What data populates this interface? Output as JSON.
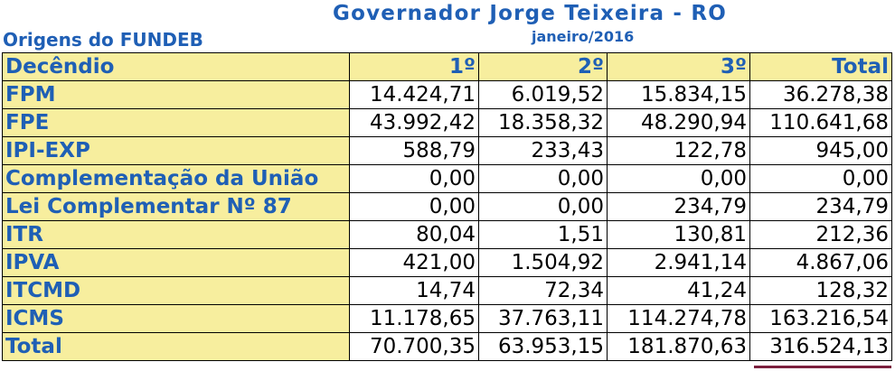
{
  "header": {
    "title": "Governador Jorge Teixeira - RO",
    "subtitle": "janeiro/2016",
    "section": "Origens do FUNDEB"
  },
  "table": {
    "columns": [
      "Decêndio",
      "1º",
      "2º",
      "3º",
      "Total"
    ],
    "rows": [
      {
        "label": "FPM",
        "values": [
          "14.424,71",
          "6.019,52",
          "15.834,15",
          "36.278,38"
        ]
      },
      {
        "label": "FPE",
        "values": [
          "43.992,42",
          "18.358,32",
          "48.290,94",
          "110.641,68"
        ]
      },
      {
        "label": "IPI-EXP",
        "values": [
          "588,79",
          "233,43",
          "122,78",
          "945,00"
        ]
      },
      {
        "label": "Complementação da União",
        "values": [
          "0,00",
          "0,00",
          "0,00",
          "0,00"
        ]
      },
      {
        "label": "Lei Complementar Nº 87",
        "values": [
          "0,00",
          "0,00",
          "234,79",
          "234,79"
        ]
      },
      {
        "label": "ITR",
        "values": [
          "80,04",
          "1,51",
          "130,81",
          "212,36"
        ]
      },
      {
        "label": "IPVA",
        "values": [
          "421,00",
          "1.504,92",
          "2.941,14",
          "4.867,06"
        ]
      },
      {
        "label": "ITCMD",
        "values": [
          "14,74",
          "72,34",
          "41,24",
          "128,32"
        ]
      },
      {
        "label": "ICMS",
        "values": [
          "11.178,65",
          "37.763,11",
          "114.274,78",
          "163.216,54"
        ]
      },
      {
        "label": "Total",
        "values": [
          "70.700,35",
          "63.953,15",
          "181.870,63",
          "316.524,13"
        ]
      }
    ]
  },
  "colors": {
    "label_text": "#1f5fb5",
    "header_bg": "#f7ee9e",
    "underline": "#7a1f3d"
  }
}
